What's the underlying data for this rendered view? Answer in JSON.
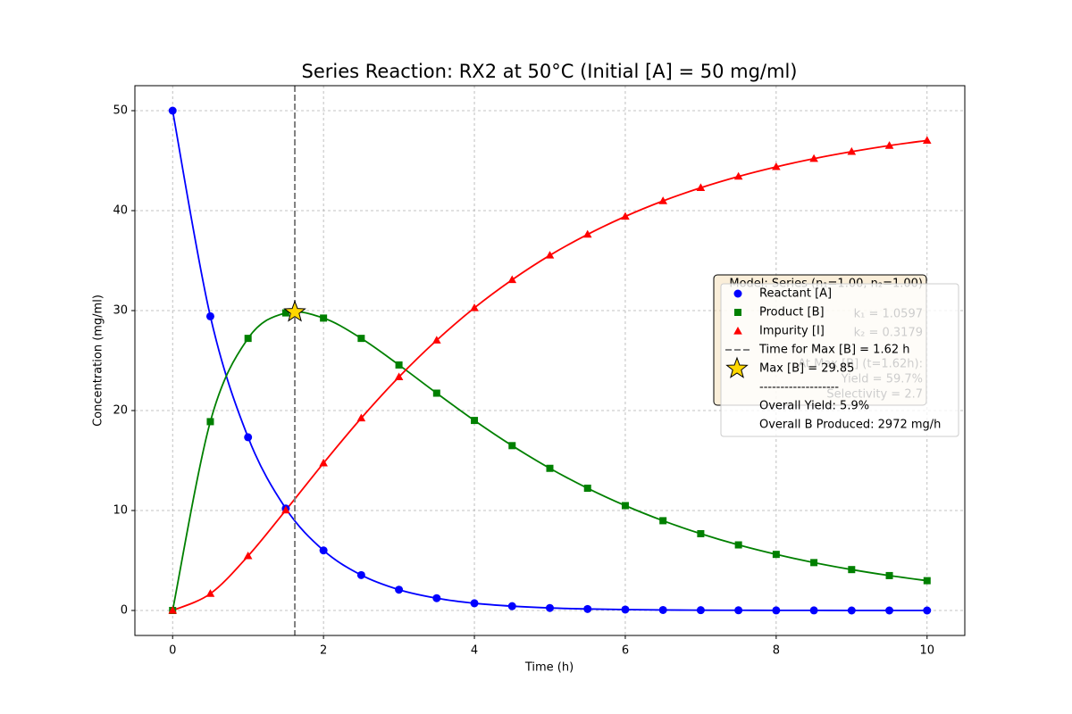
{
  "chart_data": {
    "type": "line",
    "title": "Series Reaction: RX2 at 50°C (Initial [A] = 50 mg/ml)",
    "x_label": "Time (h)",
    "y_label": "Concentration (mg/ml)",
    "x": [
      0,
      0.5,
      1,
      1.5,
      2,
      2.5,
      3,
      3.5,
      4,
      4.5,
      5,
      5.5,
      6,
      6.5,
      7,
      7.5,
      8,
      8.5,
      9,
      9.5,
      10
    ],
    "series": [
      {
        "name": "Reactant [A]",
        "color": "#0000ff",
        "marker": "circle",
        "values": [
          50,
          29.43,
          17.33,
          10.2,
          6.01,
          3.54,
          2.08,
          1.23,
          0.72,
          0.43,
          0.25,
          0.15,
          0.09,
          0.05,
          0.03,
          0.02,
          0.01,
          0.01,
          0,
          0,
          0
        ]
      },
      {
        "name": "Product [B]",
        "color": "#008000",
        "marker": "square",
        "values": [
          0,
          18.89,
          27.22,
          29.77,
          29.25,
          27.22,
          24.56,
          21.74,
          19.01,
          16.49,
          14.22,
          12.23,
          10.49,
          8.98,
          7.68,
          6.56,
          5.61,
          4.79,
          4.09,
          3.49,
          2.98
        ]
      },
      {
        "name": "Impurity [I]",
        "color": "#ff0000",
        "marker": "triangle",
        "values": [
          0,
          1.68,
          5.45,
          10.03,
          14.74,
          19.24,
          23.36,
          27.03,
          30.27,
          33.08,
          35.53,
          37.62,
          39.42,
          40.97,
          42.29,
          43.42,
          44.38,
          45.2,
          45.9,
          46.51,
          47.02
        ]
      }
    ],
    "vline": {
      "x": 1.62,
      "name": "Time for Max [B] = 1.62 h",
      "color": "#808080"
    },
    "star": {
      "x": 1.62,
      "y": 29.85,
      "name": "Max [B] = 29.85",
      "color": "#ffd700"
    },
    "legend_extra": [
      "-------------------",
      "Overall Yield: 5.9%",
      "Overall B Produced: 2972 mg/h"
    ],
    "text_box": [
      "Model: Series (n₁=1.00, n₂=1.00)",
      "k₁ = 1.0597",
      "k₂ = 0.3179",
      "At Max [B] (t=1.62h):",
      "Yield = 59.7%",
      "Selectivity = 2.7"
    ],
    "xlim": [
      -0.5,
      10.5
    ],
    "ylim": [
      -2.5,
      52.5
    ],
    "xticks": [
      0,
      2,
      4,
      6,
      8,
      10
    ],
    "yticks": [
      0,
      10,
      20,
      30,
      40,
      50
    ],
    "grid": true
  }
}
